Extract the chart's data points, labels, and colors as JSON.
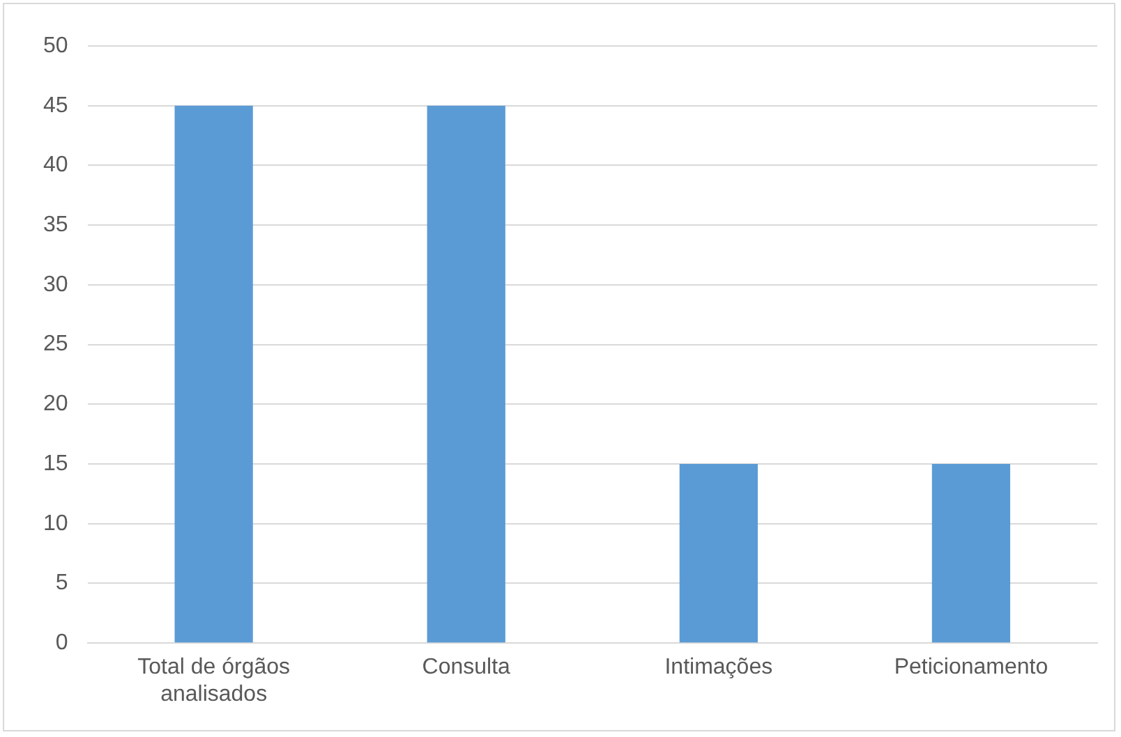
{
  "chart_data": {
    "type": "bar",
    "categories": [
      "Total de órgãos analisados",
      "Consulta",
      "Intimações",
      "Peticionamento"
    ],
    "values": [
      45,
      45,
      15,
      15
    ],
    "color": "#5b9bd5",
    "ylim": [
      0,
      50
    ],
    "yticks": [
      0,
      5,
      10,
      15,
      20,
      25,
      30,
      35,
      40,
      45,
      50
    ],
    "grid": "y",
    "legend": false
  }
}
